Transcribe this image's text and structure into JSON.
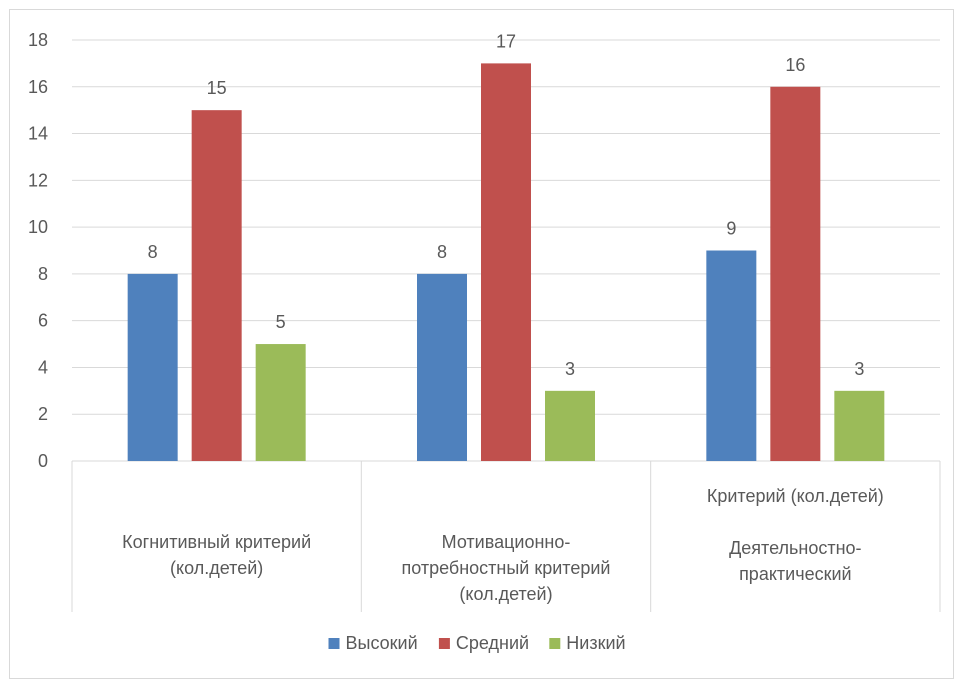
{
  "chart_data": {
    "type": "bar",
    "categories": [
      [
        "Когнитивный критерий",
        "(кол.детей)"
      ],
      [
        "Мотивационно-",
        "потребностный критерий",
        "(кол.детей)"
      ],
      [
        "Критерий (кол.детей)",
        "",
        "Деятельностно-",
        "практический"
      ]
    ],
    "series": [
      {
        "name": "Высокий",
        "values": [
          8,
          8,
          9
        ],
        "color": "#4f81bd"
      },
      {
        "name": "Средний",
        "values": [
          15,
          17,
          16
        ],
        "color": "#c0504d"
      },
      {
        "name": "Низкий",
        "values": [
          5,
          3,
          3
        ],
        "color": "#9bbb59"
      }
    ],
    "yticks": [
      "0",
      "2",
      "4",
      "6",
      "8",
      "10",
      "12",
      "14",
      "16",
      "18"
    ],
    "ylim": [
      0,
      18
    ],
    "grid": true,
    "legend_position": "bottom",
    "title": "",
    "xlabel": "",
    "ylabel": ""
  }
}
